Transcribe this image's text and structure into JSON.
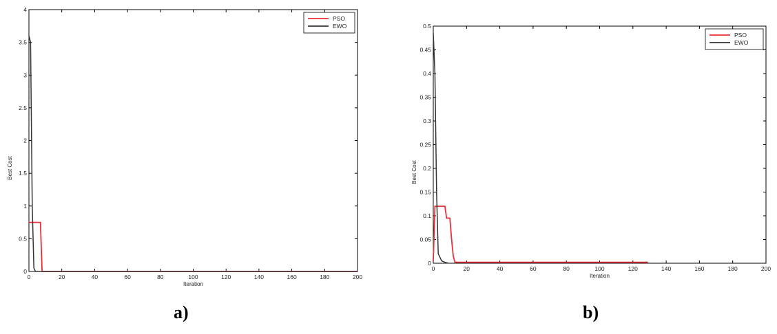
{
  "panels": {
    "a": {
      "label": "a)"
    },
    "b": {
      "label": "b)"
    }
  },
  "chart_data": [
    {
      "type": "line",
      "xlabel": "Iteration",
      "ylabel": "Best Cost",
      "xlim": [
        0,
        200
      ],
      "ylim": [
        0,
        4
      ],
      "xticks": [
        0,
        20,
        40,
        60,
        80,
        100,
        120,
        140,
        160,
        180,
        200
      ],
      "yticks": [
        0,
        0.5,
        1,
        1.5,
        2,
        2.5,
        3,
        3.5,
        4
      ],
      "grid": false,
      "legend_position": "top-right",
      "series": [
        {
          "name": "PSO",
          "color": "#e8303a",
          "x": [
            0,
            1,
            7,
            8,
            200
          ],
          "y": [
            0.75,
            0.75,
            0.75,
            0.0,
            0.0
          ]
        },
        {
          "name": "EWO",
          "color": "#333333",
          "x": [
            0,
            1,
            2,
            3,
            4,
            200
          ],
          "y": [
            3.6,
            3.5,
            1.0,
            0.05,
            0.0,
            0.0
          ]
        }
      ]
    },
    {
      "type": "line",
      "xlabel": "Iteration",
      "ylabel": "Best Cost",
      "xlim": [
        0,
        200
      ],
      "ylim": [
        0,
        0.5
      ],
      "xticks": [
        0,
        20,
        40,
        60,
        80,
        100,
        120,
        140,
        160,
        180,
        200
      ],
      "yticks": [
        0,
        0.05,
        0.1,
        0.15,
        0.2,
        0.25,
        0.3,
        0.35,
        0.4,
        0.45,
        0.5
      ],
      "grid": false,
      "legend_position": "top-right",
      "series": [
        {
          "name": "PSO",
          "color": "#e8303a",
          "x": [
            0,
            1,
            7,
            8,
            10,
            11,
            12,
            13,
            129
          ],
          "y": [
            0.005,
            0.12,
            0.12,
            0.095,
            0.095,
            0.05,
            0.015,
            0.002,
            0.002
          ]
        },
        {
          "name": "EWO",
          "color": "#333333",
          "x": [
            0,
            1,
            2,
            3,
            5,
            7,
            9
          ],
          "y": [
            0.485,
            0.4,
            0.15,
            0.02,
            0.005,
            0.002,
            0.0
          ]
        }
      ]
    }
  ]
}
